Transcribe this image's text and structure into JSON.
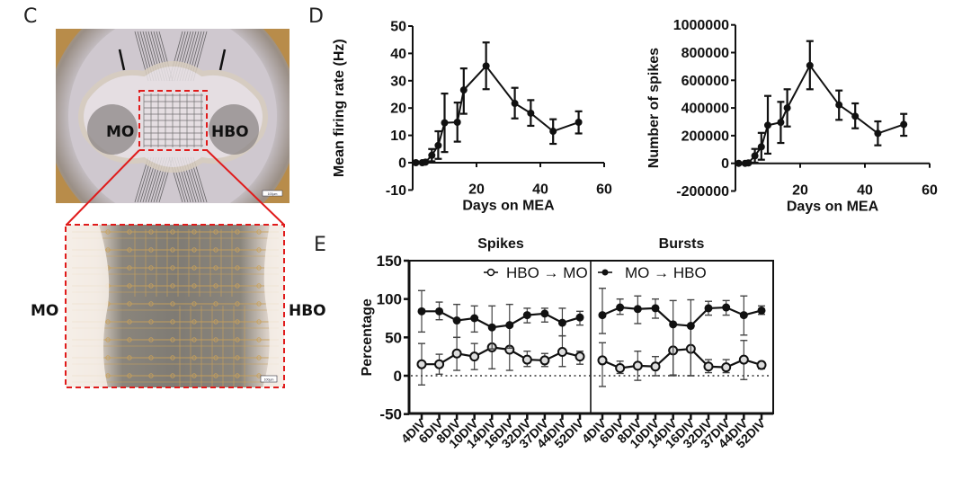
{
  "panels": {
    "c": {
      "letter": "C",
      "photo_top": {
        "labels": {
          "left": "MO",
          "right": "HBO"
        },
        "scale_bar": "100µm"
      },
      "photo_bottom": {
        "labels": {
          "left": "MO",
          "right": "HBO"
        },
        "scale_bar": "100µm"
      },
      "highlight_color": "#e01b1b"
    },
    "d": {
      "letter": "D"
    },
    "e": {
      "letter": "E"
    }
  },
  "chart_data": [
    {
      "id": "d-left",
      "type": "line",
      "title": "",
      "xlabel": "Days on MEA",
      "ylabel": "Mean firing rate (Hz)",
      "xlim": [
        0,
        60
      ],
      "ylim": [
        -10,
        50
      ],
      "xticks": [
        20,
        40,
        60
      ],
      "yticks": [
        -10,
        0,
        10,
        20,
        30,
        40,
        50
      ],
      "grid": false,
      "series": [
        {
          "name": "Mean firing rate",
          "x": [
            1,
            3,
            4,
            6,
            8,
            10,
            14,
            16,
            23,
            32,
            37,
            44,
            52
          ],
          "y": [
            0,
            0,
            0.2,
            2.7,
            6.3,
            14.6,
            14.8,
            26.6,
            35.4,
            21.7,
            18.1,
            11.5,
            14.8
          ],
          "err_upper": [
            0,
            0,
            0.5,
            5,
            11.5,
            25.3,
            22,
            34.5,
            44,
            27.4,
            22.9,
            15.9,
            18.8
          ],
          "err_lower": [
            0,
            0,
            0,
            0.5,
            1.4,
            3.9,
            7.7,
            17.9,
            26.9,
            16.2,
            13.5,
            6.9,
            10.7
          ]
        }
      ]
    },
    {
      "id": "d-right",
      "type": "line",
      "title": "",
      "xlabel": "Days on MEA",
      "ylabel": "Number of spikes",
      "xlim": [
        0,
        60
      ],
      "ylim": [
        -200000,
        1000000
      ],
      "xticks": [
        20,
        40,
        60
      ],
      "yticks": [
        -200000,
        0,
        200000,
        400000,
        600000,
        800000,
        1000000
      ],
      "grid": false,
      "series": [
        {
          "name": "Number of spikes",
          "x": [
            1,
            3,
            4,
            6,
            8,
            10,
            14,
            16,
            23,
            32,
            37,
            44,
            52
          ],
          "y": [
            0,
            0,
            3000,
            54000,
            119000,
            275000,
            296000,
            400000,
            707000,
            422000,
            340000,
            216000,
            281000
          ],
          "err_upper": [
            0,
            0,
            8000,
            104000,
            220000,
            487000,
            444000,
            535000,
            883000,
            526000,
            433000,
            303000,
            357000
          ],
          "err_lower": [
            0,
            0,
            0,
            5000,
            26000,
            70000,
            147000,
            266000,
            535000,
            314000,
            253000,
            130000,
            199000
          ]
        }
      ]
    },
    {
      "id": "e",
      "type": "line",
      "ylabel": "Percentage",
      "ylim": [
        -50,
        150
      ],
      "yticks": [
        -50,
        0,
        50,
        100,
        150
      ],
      "reference_line": 0,
      "grid": false,
      "legend_placement": "top",
      "subplots": [
        {
          "title": "Spikes",
          "categories": [
            "4DIV",
            "6DIV",
            "8DIV",
            "10DIV",
            "14DIV",
            "16DIV",
            "32DIV",
            "37DIV",
            "44DIV",
            "52DIV"
          ],
          "legend": "HBO → MO",
          "series": [
            {
              "name": "HBO → MO",
              "marker": "open-circle",
              "values": [
                15,
                15,
                29,
                25,
                37,
                34,
                21,
                20,
                31,
                25
              ],
              "err_upper": [
                42,
                28,
                50,
                42,
                65,
                64,
                32,
                29,
                52,
                32
              ],
              "err_lower": [
                -12,
                2,
                7,
                8,
                9,
                7,
                12,
                12,
                12,
                15
              ]
            },
            {
              "name": "MO → HBO",
              "marker": "filled-circle",
              "values": [
                84,
                84,
                72,
                75,
                63,
                66,
                79,
                81,
                69,
                76
              ],
              "err_upper": [
                111,
                96,
                93,
                91,
                91,
                93,
                88,
                88,
                88,
                84
              ],
              "err_lower": [
                57,
                73,
                50,
                57,
                35,
                36,
                69,
                70,
                52,
                66
              ]
            }
          ]
        },
        {
          "title": "Bursts",
          "categories": [
            "4DIV",
            "6DIV",
            "8DIV",
            "10DIV",
            "14DIV",
            "16DIV",
            "32DIV",
            "37DIV",
            "44DIV",
            "52DIV"
          ],
          "legend": "MO → HBO",
          "series": [
            {
              "name": "HBO → MO",
              "marker": "open-circle",
              "values": [
                20,
                10,
                13,
                12,
                33,
                35,
                12,
                11,
                21,
                14
              ],
              "err_upper": [
                43,
                19,
                32,
                25,
                66,
                65,
                21,
                21,
                46,
                18
              ],
              "err_lower": [
                -14,
                3,
                -6,
                0,
                0,
                0,
                4,
                4,
                -5,
                9
              ]
            },
            {
              "name": "MO → HBO",
              "marker": "filled-circle",
              "values": [
                79,
                89,
                87,
                88,
                67,
                65,
                88,
                89,
                79,
                85
              ],
              "err_upper": [
                114,
                100,
                104,
                100,
                98,
                99,
                97,
                98,
                104,
                91
              ],
              "err_lower": [
                55,
                80,
                68,
                75,
                1,
                0,
                79,
                79,
                53,
                80
              ]
            }
          ]
        }
      ]
    }
  ]
}
